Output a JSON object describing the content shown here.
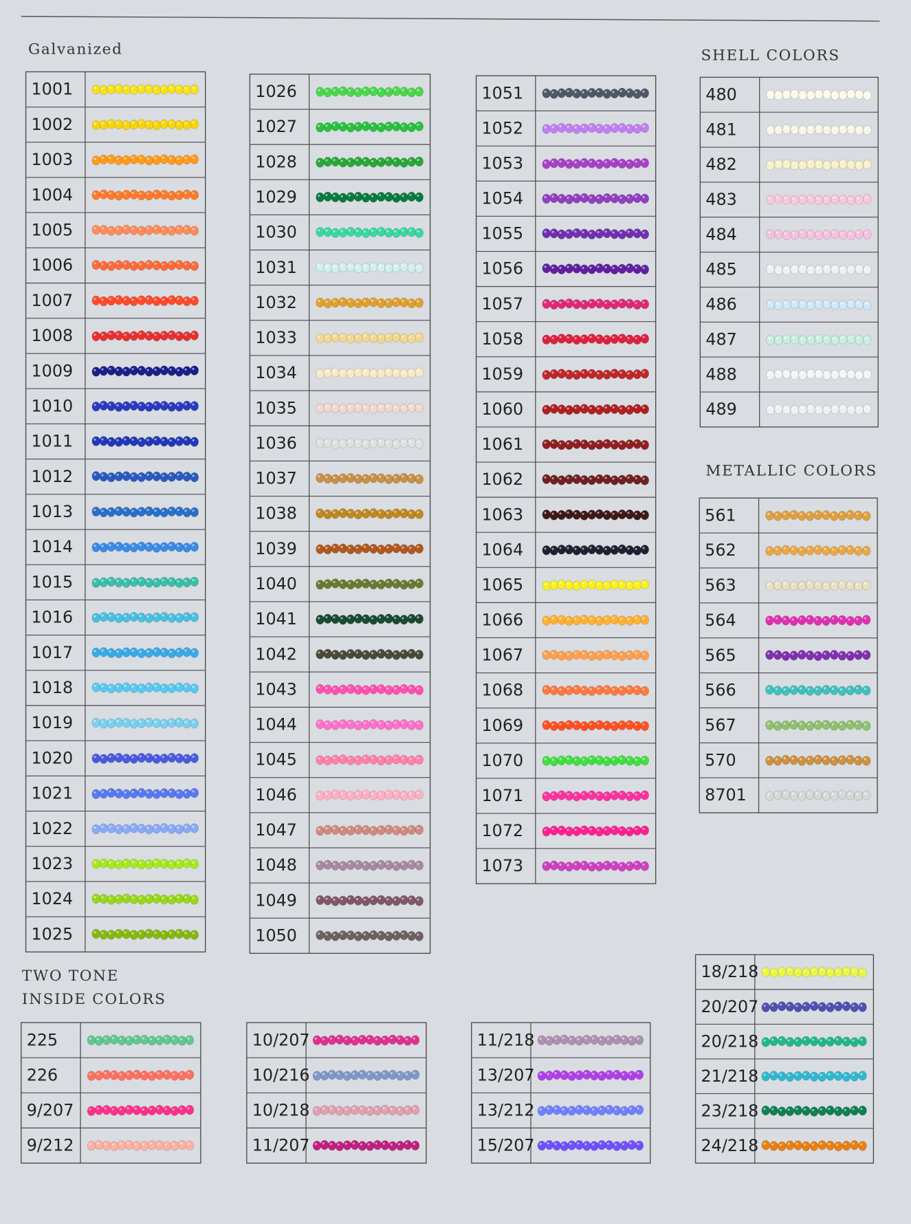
{
  "sections": [
    {
      "title": "Galvanized",
      "tables": [
        {
          "rows": [
            {
              "code": "1001",
              "color": "#f5e21a"
            },
            {
              "code": "1002",
              "color": "#f8d40c"
            },
            {
              "code": "1003",
              "color": "#ff9a1a"
            },
            {
              "code": "1004",
              "color": "#ff7a2a"
            },
            {
              "code": "1005",
              "color": "#ff8a5a"
            },
            {
              "code": "1006",
              "color": "#ff6a3a"
            },
            {
              "code": "1007",
              "color": "#ff4a2a"
            },
            {
              "code": "1008",
              "color": "#e83030"
            },
            {
              "code": "1009",
              "color": "#1a1f8a"
            },
            {
              "code": "1010",
              "color": "#2a3ac0"
            },
            {
              "code": "1011",
              "color": "#2238b8"
            },
            {
              "code": "1012",
              "color": "#2a5ac0"
            },
            {
              "code": "1013",
              "color": "#2a70c8"
            },
            {
              "code": "1014",
              "color": "#3a8ae8"
            },
            {
              "code": "1015",
              "color": "#3abfa8"
            },
            {
              "code": "1016",
              "color": "#4ac0e0"
            },
            {
              "code": "1017",
              "color": "#3aaae8"
            },
            {
              "code": "1018",
              "color": "#5ac8f0"
            },
            {
              "code": "1019",
              "color": "#7ad0f0"
            },
            {
              "code": "1020",
              "color": "#4a5ae0"
            },
            {
              "code": "1021",
              "color": "#5a78f0"
            },
            {
              "code": "1022",
              "color": "#8aaaf8"
            },
            {
              "code": "1023",
              "color": "#a8e820"
            },
            {
              "code": "1024",
              "color": "#98d818"
            },
            {
              "code": "1025",
              "color": "#88b810"
            }
          ]
        },
        {
          "rows": [
            {
              "code": "1026",
              "color": "#4ad84a"
            },
            {
              "code": "1027",
              "color": "#2ac040"
            },
            {
              "code": "1028",
              "color": "#28a838"
            },
            {
              "code": "1029",
              "color": "#0a7a40"
            },
            {
              "code": "1030",
              "color": "#3ad8a0"
            },
            {
              "code": "1031",
              "color": "#d0f0f0"
            },
            {
              "code": "1032",
              "color": "#e0a030"
            },
            {
              "code": "1033",
              "color": "#f0d890"
            },
            {
              "code": "1034",
              "color": "#f8e8c8"
            },
            {
              "code": "1035",
              "color": "#f0d8d0"
            },
            {
              "code": "1036",
              "color": "#e0e0e0"
            },
            {
              "code": "1037",
              "color": "#c89048"
            },
            {
              "code": "1038",
              "color": "#c08820"
            },
            {
              "code": "1039",
              "color": "#b05820"
            },
            {
              "code": "1040",
              "color": "#6a7a30"
            },
            {
              "code": "1041",
              "color": "#1a4a30"
            },
            {
              "code": "1042",
              "color": "#4a4a38"
            },
            {
              "code": "1043",
              "color": "#ff50b0"
            },
            {
              "code": "1044",
              "color": "#ff70c8"
            },
            {
              "code": "1045",
              "color": "#ff80a8"
            },
            {
              "code": "1046",
              "color": "#ffb0c0"
            },
            {
              "code": "1047",
              "color": "#d08a80"
            },
            {
              "code": "1048",
              "color": "#a88aa0"
            },
            {
              "code": "1049",
              "color": "#805868"
            },
            {
              "code": "1050",
              "color": "#706060"
            }
          ]
        },
        {
          "rows": [
            {
              "code": "1051",
              "color": "#505868"
            },
            {
              "code": "1052",
              "color": "#c080f0"
            },
            {
              "code": "1053",
              "color": "#a840c8"
            },
            {
              "code": "1054",
              "color": "#9040c0"
            },
            {
              "code": "1055",
              "color": "#7030b0"
            },
            {
              "code": "1056",
              "color": "#6020a0"
            },
            {
              "code": "1057",
              "color": "#e02878"
            },
            {
              "code": "1058",
              "color": "#e02040"
            },
            {
              "code": "1059",
              "color": "#c02828"
            },
            {
              "code": "1060",
              "color": "#b02020"
            },
            {
              "code": "1061",
              "color": "#902020"
            },
            {
              "code": "1062",
              "color": "#702020"
            },
            {
              "code": "1063",
              "color": "#401818"
            },
            {
              "code": "1064",
              "color": "#202030"
            },
            {
              "code": "1065",
              "color": "#f8f020"
            },
            {
              "code": "1066",
              "color": "#ffb030"
            },
            {
              "code": "1067",
              "color": "#ffa050"
            },
            {
              "code": "1068",
              "color": "#ff7840"
            },
            {
              "code": "1069",
              "color": "#ff5020"
            },
            {
              "code": "1070",
              "color": "#40e040"
            },
            {
              "code": "1071",
              "color": "#ff30a0"
            },
            {
              "code": "1072",
              "color": "#ff2090"
            },
            {
              "code": "1073",
              "color": "#d040c0"
            }
          ]
        }
      ]
    },
    {
      "title": "SHELL COLORS",
      "tables": [
        {
          "rows": [
            {
              "code": "480",
              "color": "#fcf8ec"
            },
            {
              "code": "481",
              "color": "#f8f4e8"
            },
            {
              "code": "482",
              "color": "#f8f0c8"
            },
            {
              "code": "483",
              "color": "#f8c8d8"
            },
            {
              "code": "484",
              "color": "#f8c0e0"
            },
            {
              "code": "485",
              "color": "#f0f0f4"
            },
            {
              "code": "486",
              "color": "#d0e8f8"
            },
            {
              "code": "487",
              "color": "#c8f0e0"
            },
            {
              "code": "488",
              "color": "#f4f4f4"
            },
            {
              "code": "489",
              "color": "#f0f0f4"
            }
          ]
        }
      ]
    },
    {
      "title": "METALLIC COLORS",
      "tables": [
        {
          "rows": [
            {
              "code": "561",
              "color": "#e0a040"
            },
            {
              "code": "562",
              "color": "#e8a848"
            },
            {
              "code": "563",
              "color": "#e8e0c0"
            },
            {
              "code": "564",
              "color": "#e030b0"
            },
            {
              "code": "565",
              "color": "#8030b0"
            },
            {
              "code": "566",
              "color": "#40c0c0"
            },
            {
              "code": "567",
              "color": "#90c070"
            },
            {
              "code": "570",
              "color": "#d09040"
            },
            {
              "code": "8701",
              "color": "#d8d8d8"
            }
          ]
        }
      ]
    },
    {
      "title": [
        "TWO TONE",
        "INSIDE COLORS"
      ],
      "tables": [
        {
          "rows": [
            {
              "code": "225",
              "color": "#60c890"
            },
            {
              "code": "226",
              "color": "#ff7060"
            },
            {
              "code": "9/207",
              "color": "#ff3088"
            },
            {
              "code": "9/212",
              "color": "#ffb0a0"
            }
          ]
        },
        {
          "rows": [
            {
              "code": "10/207",
              "color": "#e03090"
            },
            {
              "code": "10/216",
              "color": "#8098c8"
            },
            {
              "code": "10/218",
              "color": "#e0a0b0"
            },
            {
              "code": "11/207",
              "color": "#c02080"
            }
          ]
        },
        {
          "rows": [
            {
              "code": "11/218",
              "color": "#b090b0"
            },
            {
              "code": "13/207",
              "color": "#b040e8"
            },
            {
              "code": "13/212",
              "color": "#7080ff"
            },
            {
              "code": "15/207",
              "color": "#7050ff"
            }
          ]
        },
        {
          "rows": [
            {
              "code": "18/218",
              "color": "#e8f840"
            },
            {
              "code": "20/207",
              "color": "#5050b0"
            },
            {
              "code": "20/218",
              "color": "#20b888"
            },
            {
              "code": "21/218",
              "color": "#30b8d0"
            },
            {
              "code": "23/218",
              "color": "#108050"
            },
            {
              "code": "24/218",
              "color": "#e88010"
            }
          ]
        }
      ]
    }
  ]
}
